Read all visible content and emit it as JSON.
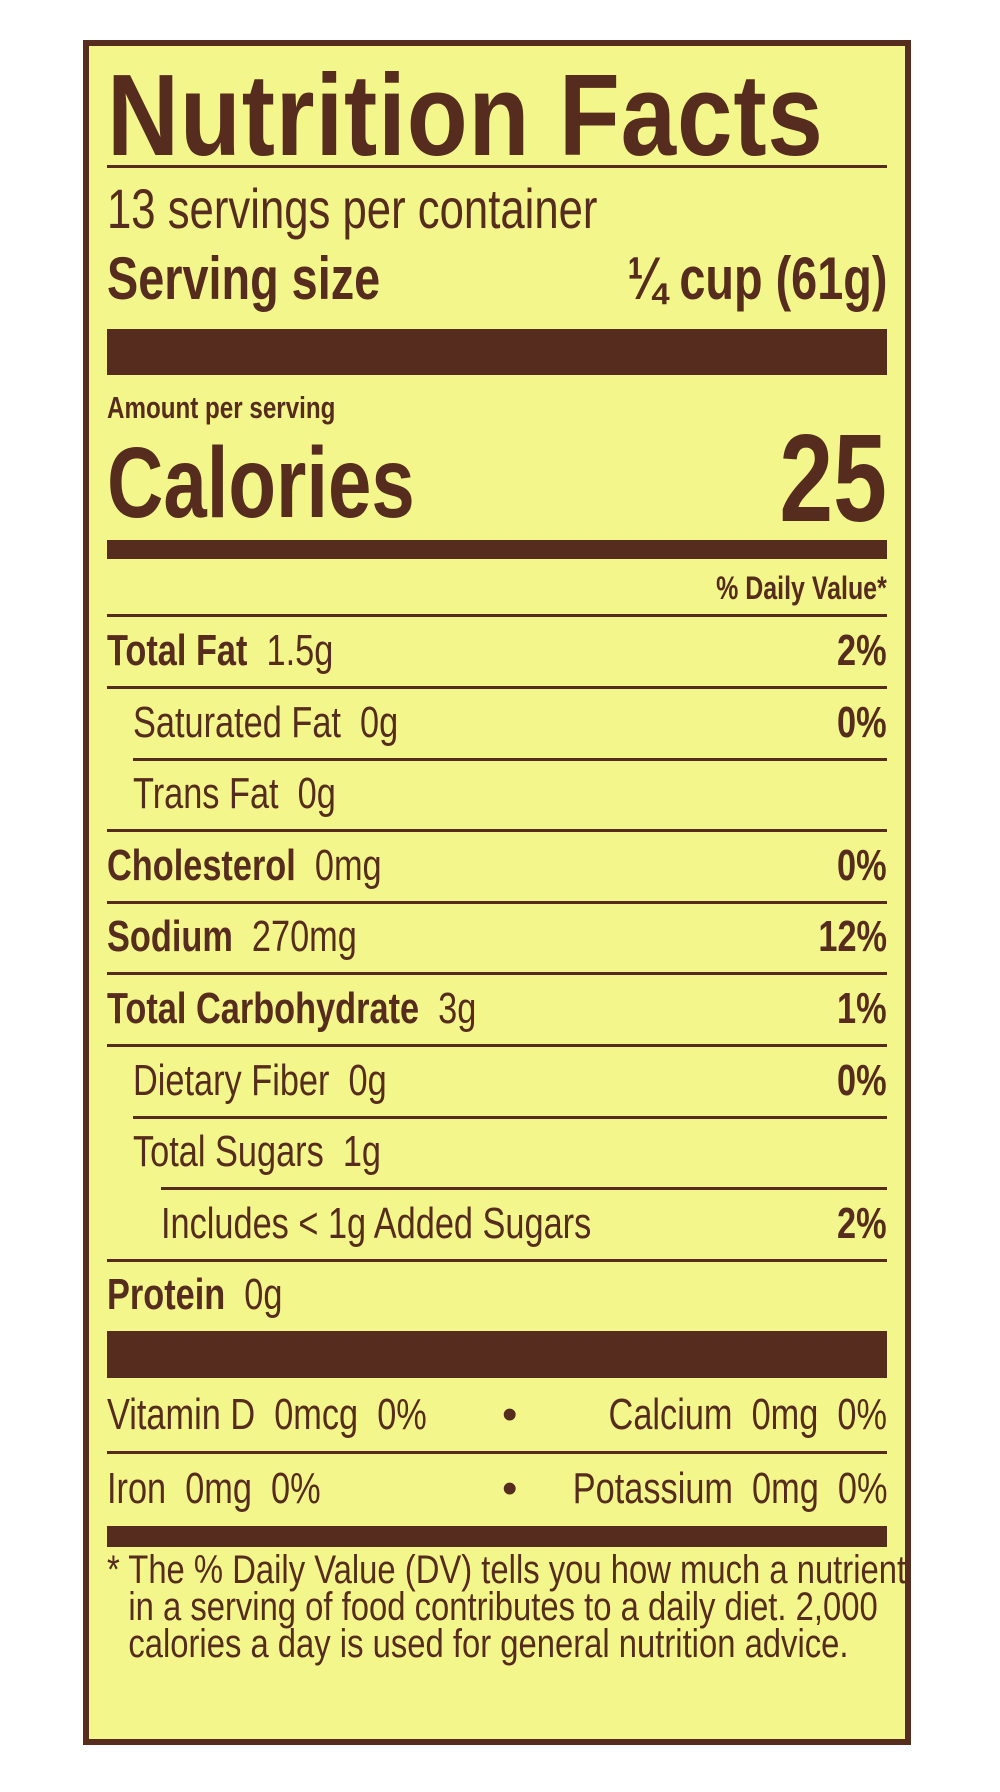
{
  "title": "Nutrition Facts",
  "servings_per_container": "13 servings per container",
  "serving_size_label": "Serving size",
  "serving_size_value": "¼ cup (61g)",
  "amount_per_serving": "Amount per serving",
  "calories_label": "Calories",
  "calories_value": "25",
  "daily_value_header": "% Daily Value*",
  "nutrients": [
    {
      "name": "Total Fat",
      "amount": "1.5g",
      "dv": "2%"
    },
    {
      "name": "Saturated Fat",
      "amount": "0g",
      "dv": "0%"
    },
    {
      "name": "Trans Fat",
      "amount": "0g",
      "dv": ""
    },
    {
      "name": "Cholesterol",
      "amount": "0mg",
      "dv": "0%"
    },
    {
      "name": "Sodium",
      "amount": "270mg",
      "dv": "12%"
    },
    {
      "name": "Total Carbohydrate",
      "amount": "3g",
      "dv": "1%"
    },
    {
      "name": "Dietary Fiber",
      "amount": "0g",
      "dv": "0%"
    },
    {
      "name": "Total Sugars",
      "amount": "1g",
      "dv": ""
    },
    {
      "name": "Includes < 1g Added Sugars",
      "amount": "",
      "dv": "2%"
    },
    {
      "name": "Protein",
      "amount": "0g",
      "dv": ""
    }
  ],
  "minerals": [
    {
      "left": "Vitamin D  0mcg  0%",
      "right": "Calcium  0mg  0%"
    },
    {
      "left": "Iron  0mg  0%",
      "right": "Potassium  0mg  0%"
    }
  ],
  "bullet": "•",
  "footnote": "* The % Daily Value (DV) tells you how much a nutrient in a serving of food contributes to a daily diet. 2,000 calories a day is used for general nutrition advice.",
  "colors": {
    "ink": "#552c1e",
    "background": "#f3f68b"
  }
}
